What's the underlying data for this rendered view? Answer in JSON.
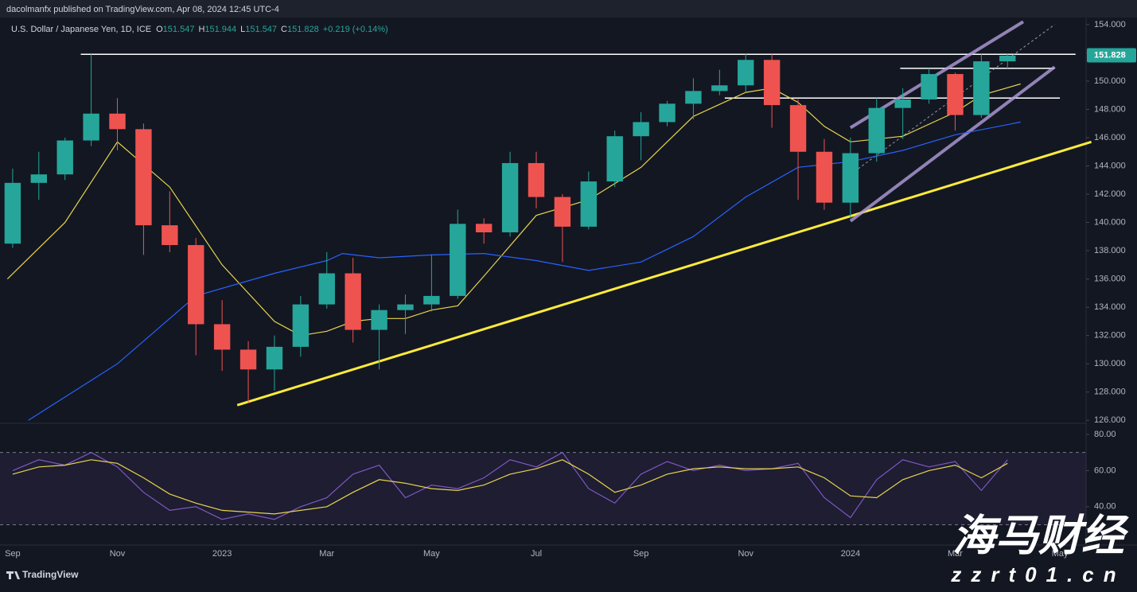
{
  "header": {
    "publisher": "dacolmanfx published on TradingView.com, Apr 08, 2024 12:45 UTC-4",
    "symbol": "U.S. Dollar / Japanese Yen, 1D, ICE",
    "ohlc": [
      {
        "label": "O",
        "value": "151.547"
      },
      {
        "label": "H",
        "value": "151.944"
      },
      {
        "label": "L",
        "value": "151.547"
      },
      {
        "label": "C",
        "value": "151.828"
      }
    ],
    "change": "+0.219 (+0.14%)"
  },
  "chart_data": [
    {
      "type": "candlestick",
      "x": [
        0,
        0.5,
        1,
        1.5,
        2,
        2.5,
        3,
        3.5,
        4,
        4.5,
        5,
        5.5,
        6,
        6.5,
        7,
        7.5,
        8,
        8.5,
        9,
        9.5,
        10,
        10.5,
        11,
        11.5,
        12,
        12.5,
        13,
        13.5,
        14,
        14.5,
        15,
        15.5,
        16,
        16.5,
        17,
        17.5,
        18,
        18.5,
        19
      ],
      "open": [
        138.5,
        142.8,
        143.4,
        145.8,
        147.7,
        146.6,
        139.8,
        138.4,
        132.8,
        131.0,
        129.6,
        131.2,
        134.2,
        136.4,
        132.4,
        133.8,
        134.2,
        134.8,
        139.9,
        139.3,
        144.2,
        141.8,
        139.7,
        142.9,
        146.1,
        147.1,
        148.4,
        149.3,
        149.7,
        151.5,
        148.3,
        145.0,
        141.4,
        144.9,
        148.1,
        148.7,
        150.5,
        147.6,
        151.4
      ],
      "high": [
        143.8,
        145.0,
        146.0,
        151.9,
        148.8,
        147.0,
        142.2,
        138.9,
        134.5,
        131.6,
        132.0,
        134.8,
        137.9,
        137.5,
        134.2,
        134.9,
        137.7,
        140.9,
        140.3,
        145.0,
        145.0,
        142.0,
        143.6,
        146.5,
        147.8,
        148.6,
        150.2,
        150.8,
        151.9,
        151.9,
        148.7,
        145.9,
        146.0,
        148.8,
        149.5,
        150.9,
        150.6,
        151.9,
        151.9
      ],
      "low": [
        138.2,
        141.6,
        143.0,
        145.4,
        145.1,
        137.7,
        137.9,
        130.6,
        129.5,
        127.2,
        128.1,
        130.5,
        133.9,
        131.5,
        129.6,
        132.1,
        133.7,
        134.6,
        138.5,
        139.0,
        141.0,
        137.2,
        139.5,
        142.5,
        144.4,
        146.8,
        147.3,
        149.0,
        149.2,
        146.7,
        141.6,
        140.9,
        140.3,
        144.3,
        145.9,
        148.4,
        146.5,
        147.4,
        150.9
      ],
      "close": [
        142.8,
        143.4,
        145.8,
        147.7,
        146.6,
        139.8,
        138.4,
        132.8,
        131.0,
        129.6,
        131.2,
        134.2,
        136.4,
        132.4,
        133.8,
        134.2,
        134.8,
        139.9,
        139.3,
        144.2,
        141.8,
        139.7,
        142.9,
        146.1,
        147.1,
        148.4,
        149.3,
        149.7,
        151.5,
        148.3,
        145.0,
        141.4,
        144.9,
        148.1,
        148.7,
        150.5,
        147.6,
        151.4,
        151.8
      ],
      "up_color": "#26a69a",
      "down_color": "#ef5350",
      "xlim": [
        -0.12,
        20.5
      ],
      "xticks": [
        {
          "value": 0,
          "label": "Sep"
        },
        {
          "value": 2,
          "label": "Nov"
        },
        {
          "value": 4,
          "label": "2023"
        },
        {
          "value": 6,
          "label": "Mar"
        },
        {
          "value": 8,
          "label": "May"
        },
        {
          "value": 10,
          "label": "Jul"
        },
        {
          "value": 12,
          "label": "Sep"
        },
        {
          "value": 14,
          "label": "Nov"
        },
        {
          "value": 16,
          "label": "2024"
        },
        {
          "value": 18,
          "label": "Mar"
        },
        {
          "value": 20,
          "label": "May"
        }
      ],
      "ylim": [
        125.9,
        154.5
      ],
      "yticks": [
        {
          "value": 126,
          "label": "126.000"
        },
        {
          "value": 128,
          "label": "128.000"
        },
        {
          "value": 130,
          "label": "130.000"
        },
        {
          "value": 132,
          "label": "132.000"
        },
        {
          "value": 134,
          "label": "134.000"
        },
        {
          "value": 136,
          "label": "136.000"
        },
        {
          "value": 138,
          "label": "138.000"
        },
        {
          "value": 140,
          "label": "140.000"
        },
        {
          "value": 142,
          "label": "142.000"
        },
        {
          "value": 144,
          "label": "144.000"
        },
        {
          "value": 146,
          "label": "146.000"
        },
        {
          "value": 148,
          "label": "148.000"
        },
        {
          "value": 150,
          "label": "150.000"
        },
        {
          "value": 152,
          "label": "152.000"
        },
        {
          "value": 154,
          "label": "154.000"
        }
      ],
      "last_price": {
        "value": 151.828,
        "label": "151.828",
        "color": "#26a69a"
      },
      "lines": [
        {
          "color": "#e8d44d",
          "x": [
            -0.1,
            1,
            2,
            3,
            4,
            5,
            5.5,
            6,
            6.5,
            7,
            7.5,
            8,
            8.5,
            9,
            10,
            11,
            12,
            13,
            14,
            14.5,
            15,
            15.5,
            16,
            17,
            18,
            18.5,
            19.25
          ],
          "y": [
            136.0,
            140,
            145.7,
            142.5,
            137,
            133.0,
            132,
            132.3,
            133,
            133.2,
            133.2,
            133.8,
            134.1,
            136.2,
            140.5,
            141.6,
            143.9,
            147.5,
            149.2,
            149.5,
            148.5,
            146.8,
            145.7,
            146.1,
            147.8,
            149,
            149.8
          ]
        },
        {
          "color": "#2962ff",
          "x": [
            0.3,
            2,
            3.5,
            5,
            6,
            6.3,
            7,
            8,
            9,
            10,
            11,
            12,
            13,
            14,
            15,
            16,
            17,
            18,
            19.25
          ],
          "y": [
            126.0,
            130,
            134.8,
            136.4,
            137.3,
            137.8,
            137.5,
            137.7,
            137.8,
            137.3,
            136.6,
            137.2,
            139,
            141.8,
            143.9,
            144.3,
            145.1,
            146.2,
            147.1
          ]
        }
      ],
      "drawings": [
        {
          "color": "#ffffff",
          "width": 1.5,
          "x": [
            1.3,
            20.3
          ],
          "y": [
            151.9,
            151.9
          ]
        },
        {
          "color": "#ffffff",
          "width": 1.5,
          "x": [
            16.95,
            19.9
          ],
          "y": [
            150.9,
            150.9
          ]
        },
        {
          "color": "#ffffff",
          "width": 1.5,
          "x": [
            13.6,
            20.0
          ],
          "y": [
            148.8,
            148.8
          ]
        },
        {
          "color": "#ffeb3b",
          "width": 3,
          "x": [
            4.29,
            20.6
          ],
          "y": [
            127.07,
            145.7
          ]
        },
        {
          "color": "#b39ddb",
          "width": 4,
          "x": [
            16.0,
            19.9
          ],
          "y": [
            140.1,
            151.0
          ]
        },
        {
          "color": "#b39ddb",
          "width": 4,
          "x": [
            16.0,
            19.3
          ],
          "y": [
            146.7,
            154.2
          ]
        },
        {
          "color": "#9598a1",
          "width": 1,
          "dash": true,
          "x": [
            16.0,
            19.9
          ],
          "y": [
            143.4,
            154.0
          ]
        }
      ]
    },
    {
      "type": "line",
      "x": [
        0,
        0.5,
        1,
        1.5,
        2,
        2.5,
        3,
        3.5,
        4,
        4.5,
        5,
        5.5,
        6,
        6.5,
        7,
        7.5,
        8,
        8.5,
        9,
        9.5,
        10,
        10.5,
        11,
        11.5,
        12,
        12.5,
        13,
        13.5,
        14,
        14.5,
        15,
        15.5,
        16,
        16.5,
        17,
        17.5,
        18,
        18.5,
        19
      ],
      "series": [
        {
          "color": "#7e57c2",
          "values": [
            60,
            66,
            63,
            70,
            62,
            48,
            38,
            40,
            33,
            36,
            33,
            40,
            45,
            58,
            63,
            45,
            52,
            50,
            56,
            66,
            62,
            70,
            50,
            42,
            58,
            65,
            60,
            63,
            60,
            61,
            64,
            45,
            34,
            55,
            66,
            62,
            65,
            49,
            66
          ]
        },
        {
          "color": "#e8d44d",
          "values": [
            58,
            62,
            63,
            66,
            64,
            56,
            47,
            42,
            38,
            37,
            36,
            38,
            40,
            48,
            55,
            53,
            50,
            49,
            52,
            58,
            61,
            66,
            58,
            48,
            52,
            58,
            61,
            62,
            61,
            61,
            62,
            56,
            46,
            45,
            55,
            60,
            63,
            56,
            64
          ]
        }
      ],
      "xlim": [
        -0.12,
        20.5
      ],
      "ylim": [
        21,
        83.5
      ],
      "yticks": [
        {
          "value": 80,
          "label": "80.00"
        },
        {
          "value": 60,
          "label": "60.00"
        },
        {
          "value": 40,
          "label": "40.00"
        }
      ],
      "band": [
        30,
        70
      ],
      "band_color": "#7e57c2"
    }
  ],
  "footer": {
    "brand": "TradingView"
  },
  "watermark": {
    "name": "海马财经",
    "site": "zzrt01.cn"
  }
}
